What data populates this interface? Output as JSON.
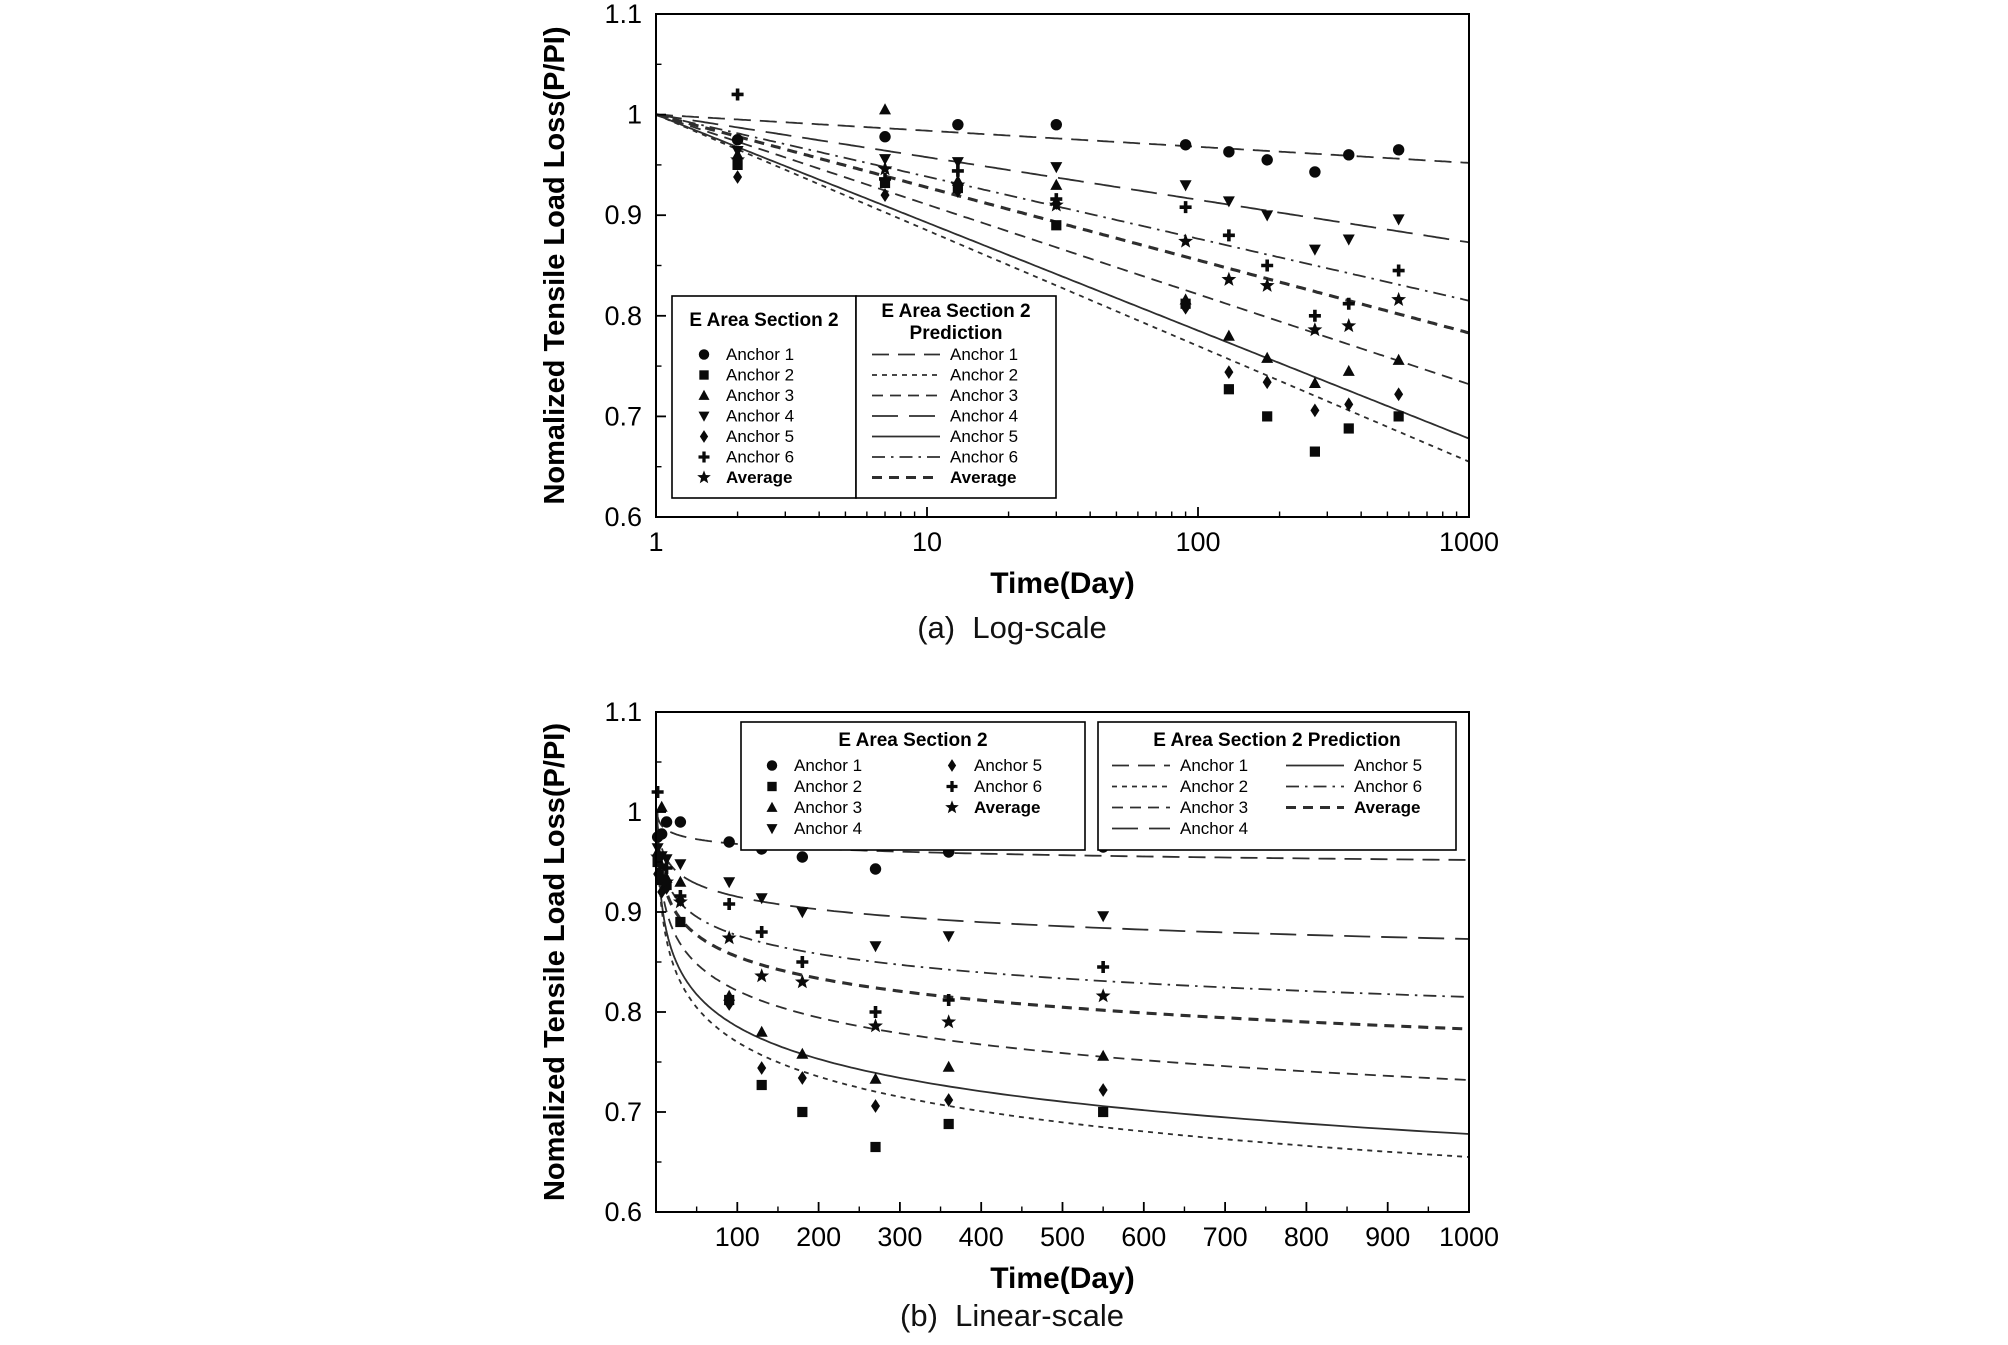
{
  "page": {
    "background": "#ffffff"
  },
  "style": {
    "ink": "#000000",
    "line_color": "#2e2e2e",
    "marker_color": "#0a0a0a"
  },
  "chart_data": [
    {
      "id": "a",
      "type": "scatter",
      "caption": "(a)  Log-scale",
      "xlabel": "Time(Day)",
      "ylabel": "Nomalized Tensile Load Loss(P/PI)",
      "x_scale": "log",
      "xlim": [
        1,
        1000
      ],
      "ylim": [
        0.6,
        1.1
      ],
      "x_ticks": [
        {
          "v": 1,
          "label": "1"
        },
        {
          "v": 10,
          "label": "10"
        },
        {
          "v": 100,
          "label": "100"
        },
        {
          "v": 1000,
          "label": "1000"
        }
      ],
      "x_minor": [
        2,
        3,
        4,
        5,
        6,
        7,
        8,
        9,
        20,
        30,
        40,
        50,
        60,
        70,
        80,
        90,
        200,
        300,
        400,
        500,
        600,
        700,
        800,
        900
      ],
      "y_ticks": [
        {
          "v": 0.6,
          "label": "0.6"
        },
        {
          "v": 0.7,
          "label": "0.7"
        },
        {
          "v": 0.8,
          "label": "0.8"
        },
        {
          "v": 0.9,
          "label": "0.9"
        },
        {
          "v": 1.0,
          "label": "1"
        },
        {
          "v": 1.1,
          "label": "1.1"
        }
      ],
      "y_minor": [
        0.65,
        0.75,
        0.85,
        0.95,
        1.05
      ],
      "legend": {
        "data_title": "E Area Section 2",
        "pred_title": [
          "E Area Section 2",
          "Prediction"
        ]
      },
      "x": [
        2,
        7,
        13,
        30,
        90,
        130,
        180,
        270,
        360,
        550
      ],
      "series": [
        {
          "name": "Anchor 1",
          "marker": "circle",
          "values": [
            0.975,
            0.978,
            0.99,
            0.99,
            0.97,
            0.963,
            0.955,
            0.943,
            0.96,
            0.965
          ]
        },
        {
          "name": "Anchor 2",
          "marker": "square",
          "values": [
            0.95,
            0.932,
            0.927,
            0.89,
            0.812,
            0.727,
            0.7,
            0.665,
            0.688,
            0.7
          ]
        },
        {
          "name": "Anchor 3",
          "marker": "triangle-up",
          "values": [
            0.96,
            1.005,
            0.934,
            0.93,
            0.816,
            0.78,
            0.758,
            0.733,
            0.745,
            0.756
          ]
        },
        {
          "name": "Anchor 4",
          "marker": "triangle-down",
          "values": [
            0.964,
            0.956,
            0.953,
            0.948,
            0.93,
            0.914,
            0.9,
            0.866,
            0.876,
            0.896
          ]
        },
        {
          "name": "Anchor 5",
          "marker": "diamond",
          "values": [
            0.938,
            0.92,
            0.924,
            0.912,
            0.808,
            0.744,
            0.734,
            0.706,
            0.712,
            0.722
          ]
        },
        {
          "name": "Anchor 6",
          "marker": "plus",
          "values": [
            1.02,
            0.936,
            0.944,
            0.916,
            0.908,
            0.88,
            0.85,
            0.8,
            0.812,
            0.845
          ]
        },
        {
          "name": "Average",
          "marker": "star",
          "values": [
            0.955,
            0.946,
            0.93,
            0.91,
            0.874,
            0.836,
            0.83,
            0.786,
            0.79,
            0.816
          ]
        }
      ],
      "predictions": [
        {
          "name": "Anchor 1",
          "dash": "dash-long",
          "p_at_1000": 0.952
        },
        {
          "name": "Anchor 2",
          "dash": "dash-short",
          "p_at_1000": 0.655
        },
        {
          "name": "Anchor 3",
          "dash": "dash-med",
          "p_at_1000": 0.732
        },
        {
          "name": "Anchor 4",
          "dash": "dash-xlong",
          "p_at_1000": 0.873
        },
        {
          "name": "Anchor 5",
          "dash": "solid",
          "p_at_1000": 0.678
        },
        {
          "name": "Anchor 6",
          "dash": "dash-dot",
          "p_at_1000": 0.815
        },
        {
          "name": "Average",
          "dash": "dash-bold",
          "p_at_1000": 0.783
        }
      ]
    },
    {
      "id": "b",
      "type": "scatter",
      "caption": "(b)  Linear-scale",
      "xlabel": "Time(Day)",
      "ylabel": "Nomalized Tensile Load Loss(P/PI)",
      "x_scale": "linear",
      "xlim": [
        0,
        1000
      ],
      "ylim": [
        0.6,
        1.1
      ],
      "x_ticks": [
        {
          "v": 100,
          "label": "100"
        },
        {
          "v": 200,
          "label": "200"
        },
        {
          "v": 300,
          "label": "300"
        },
        {
          "v": 400,
          "label": "400"
        },
        {
          "v": 500,
          "label": "500"
        },
        {
          "v": 600,
          "label": "600"
        },
        {
          "v": 700,
          "label": "700"
        },
        {
          "v": 800,
          "label": "800"
        },
        {
          "v": 900,
          "label": "900"
        },
        {
          "v": 1000,
          "label": "1000"
        }
      ],
      "x_minor": [
        50,
        150,
        250,
        350,
        450,
        550,
        650,
        750,
        850,
        950
      ],
      "y_ticks": [
        {
          "v": 0.6,
          "label": "0.6"
        },
        {
          "v": 0.7,
          "label": "0.7"
        },
        {
          "v": 0.8,
          "label": "0.8"
        },
        {
          "v": 0.9,
          "label": "0.9"
        },
        {
          "v": 1.0,
          "label": "1"
        },
        {
          "v": 1.1,
          "label": "1.1"
        }
      ],
      "y_minor": [
        0.65,
        0.75,
        0.85,
        0.95,
        1.05
      ],
      "legend": {
        "data_title": "E Area Section 2",
        "pred_title": [
          "E Area Section 2 Prediction"
        ]
      },
      "x": [
        2,
        7,
        13,
        30,
        90,
        130,
        180,
        270,
        360,
        550
      ],
      "series": [
        {
          "name": "Anchor 1",
          "marker": "circle",
          "values": [
            0.975,
            0.978,
            0.99,
            0.99,
            0.97,
            0.963,
            0.955,
            0.943,
            0.96,
            0.965
          ]
        },
        {
          "name": "Anchor 2",
          "marker": "square",
          "values": [
            0.95,
            0.932,
            0.927,
            0.89,
            0.812,
            0.727,
            0.7,
            0.665,
            0.688,
            0.7
          ]
        },
        {
          "name": "Anchor 3",
          "marker": "triangle-up",
          "values": [
            0.96,
            1.005,
            0.934,
            0.93,
            0.816,
            0.78,
            0.758,
            0.733,
            0.745,
            0.756
          ]
        },
        {
          "name": "Anchor 4",
          "marker": "triangle-down",
          "values": [
            0.964,
            0.956,
            0.953,
            0.948,
            0.93,
            0.914,
            0.9,
            0.866,
            0.876,
            0.896
          ]
        },
        {
          "name": "Anchor 5",
          "marker": "diamond",
          "values": [
            0.938,
            0.92,
            0.924,
            0.912,
            0.808,
            0.744,
            0.734,
            0.706,
            0.712,
            0.722
          ]
        },
        {
          "name": "Anchor 6",
          "marker": "plus",
          "values": [
            1.02,
            0.936,
            0.944,
            0.916,
            0.908,
            0.88,
            0.85,
            0.8,
            0.812,
            0.845
          ]
        },
        {
          "name": "Average",
          "marker": "star",
          "values": [
            0.955,
            0.946,
            0.93,
            0.91,
            0.874,
            0.836,
            0.83,
            0.786,
            0.79,
            0.816
          ]
        }
      ],
      "predictions": [
        {
          "name": "Anchor 1",
          "dash": "dash-long",
          "p_at_1000": 0.952
        },
        {
          "name": "Anchor 2",
          "dash": "dash-short",
          "p_at_1000": 0.655
        },
        {
          "name": "Anchor 3",
          "dash": "dash-med",
          "p_at_1000": 0.732
        },
        {
          "name": "Anchor 4",
          "dash": "dash-xlong",
          "p_at_1000": 0.873
        },
        {
          "name": "Anchor 5",
          "dash": "solid",
          "p_at_1000": 0.678
        },
        {
          "name": "Anchor 6",
          "dash": "dash-dot",
          "p_at_1000": 0.815
        },
        {
          "name": "Average",
          "dash": "dash-bold",
          "p_at_1000": 0.783
        }
      ]
    }
  ]
}
